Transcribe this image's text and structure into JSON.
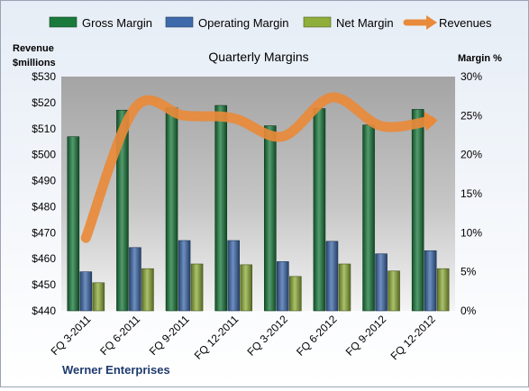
{
  "chart_data": {
    "type": "bar",
    "title": "Quarterly Margins",
    "footer_text": "Werner Enterprises",
    "categories": [
      "FQ 3-2011",
      "FQ 6-2011",
      "FQ 9-2011",
      "FQ 12-2011",
      "FQ 3-2012",
      "FQ 6-2012",
      "FQ 9-2012",
      "FQ 12-2012"
    ],
    "left_axis": {
      "label_line1": "Revenue",
      "label_line2": "$millions",
      "min": 440,
      "max": 530,
      "step": 10,
      "tick_labels": [
        "$440",
        "$450",
        "$460",
        "$470",
        "$480",
        "$490",
        "$500",
        "$510",
        "$520",
        "$530"
      ]
    },
    "right_axis": {
      "label": "Margin %",
      "min": 0,
      "max": 30,
      "step": 5,
      "tick_labels": [
        "0%",
        "5%",
        "10%",
        "15%",
        "20%",
        "25%",
        "30%"
      ]
    },
    "series": [
      {
        "name": "Gross Margin",
        "axis": "right",
        "kind": "bar",
        "color": "#1a7a3c",
        "values": [
          22.3,
          25.7,
          26.0,
          26.3,
          23.7,
          25.9,
          23.8,
          25.8
        ]
      },
      {
        "name": "Operating Margin",
        "axis": "right",
        "kind": "bar",
        "color": "#3e6aab",
        "values": [
          5.0,
          8.1,
          9.0,
          9.0,
          6.3,
          8.9,
          7.3,
          7.7
        ]
      },
      {
        "name": "Net Margin",
        "axis": "right",
        "kind": "bar",
        "color": "#8fae3a",
        "values": [
          3.6,
          5.4,
          6.0,
          5.9,
          4.4,
          6.0,
          5.1,
          5.4
        ]
      },
      {
        "name": "Revenues",
        "axis": "left",
        "kind": "line",
        "color": "#e88a3a",
        "values": [
          468,
          518,
          515,
          514,
          507,
          522,
          511,
          513
        ]
      }
    ],
    "grid": false,
    "legend_position": "top"
  }
}
